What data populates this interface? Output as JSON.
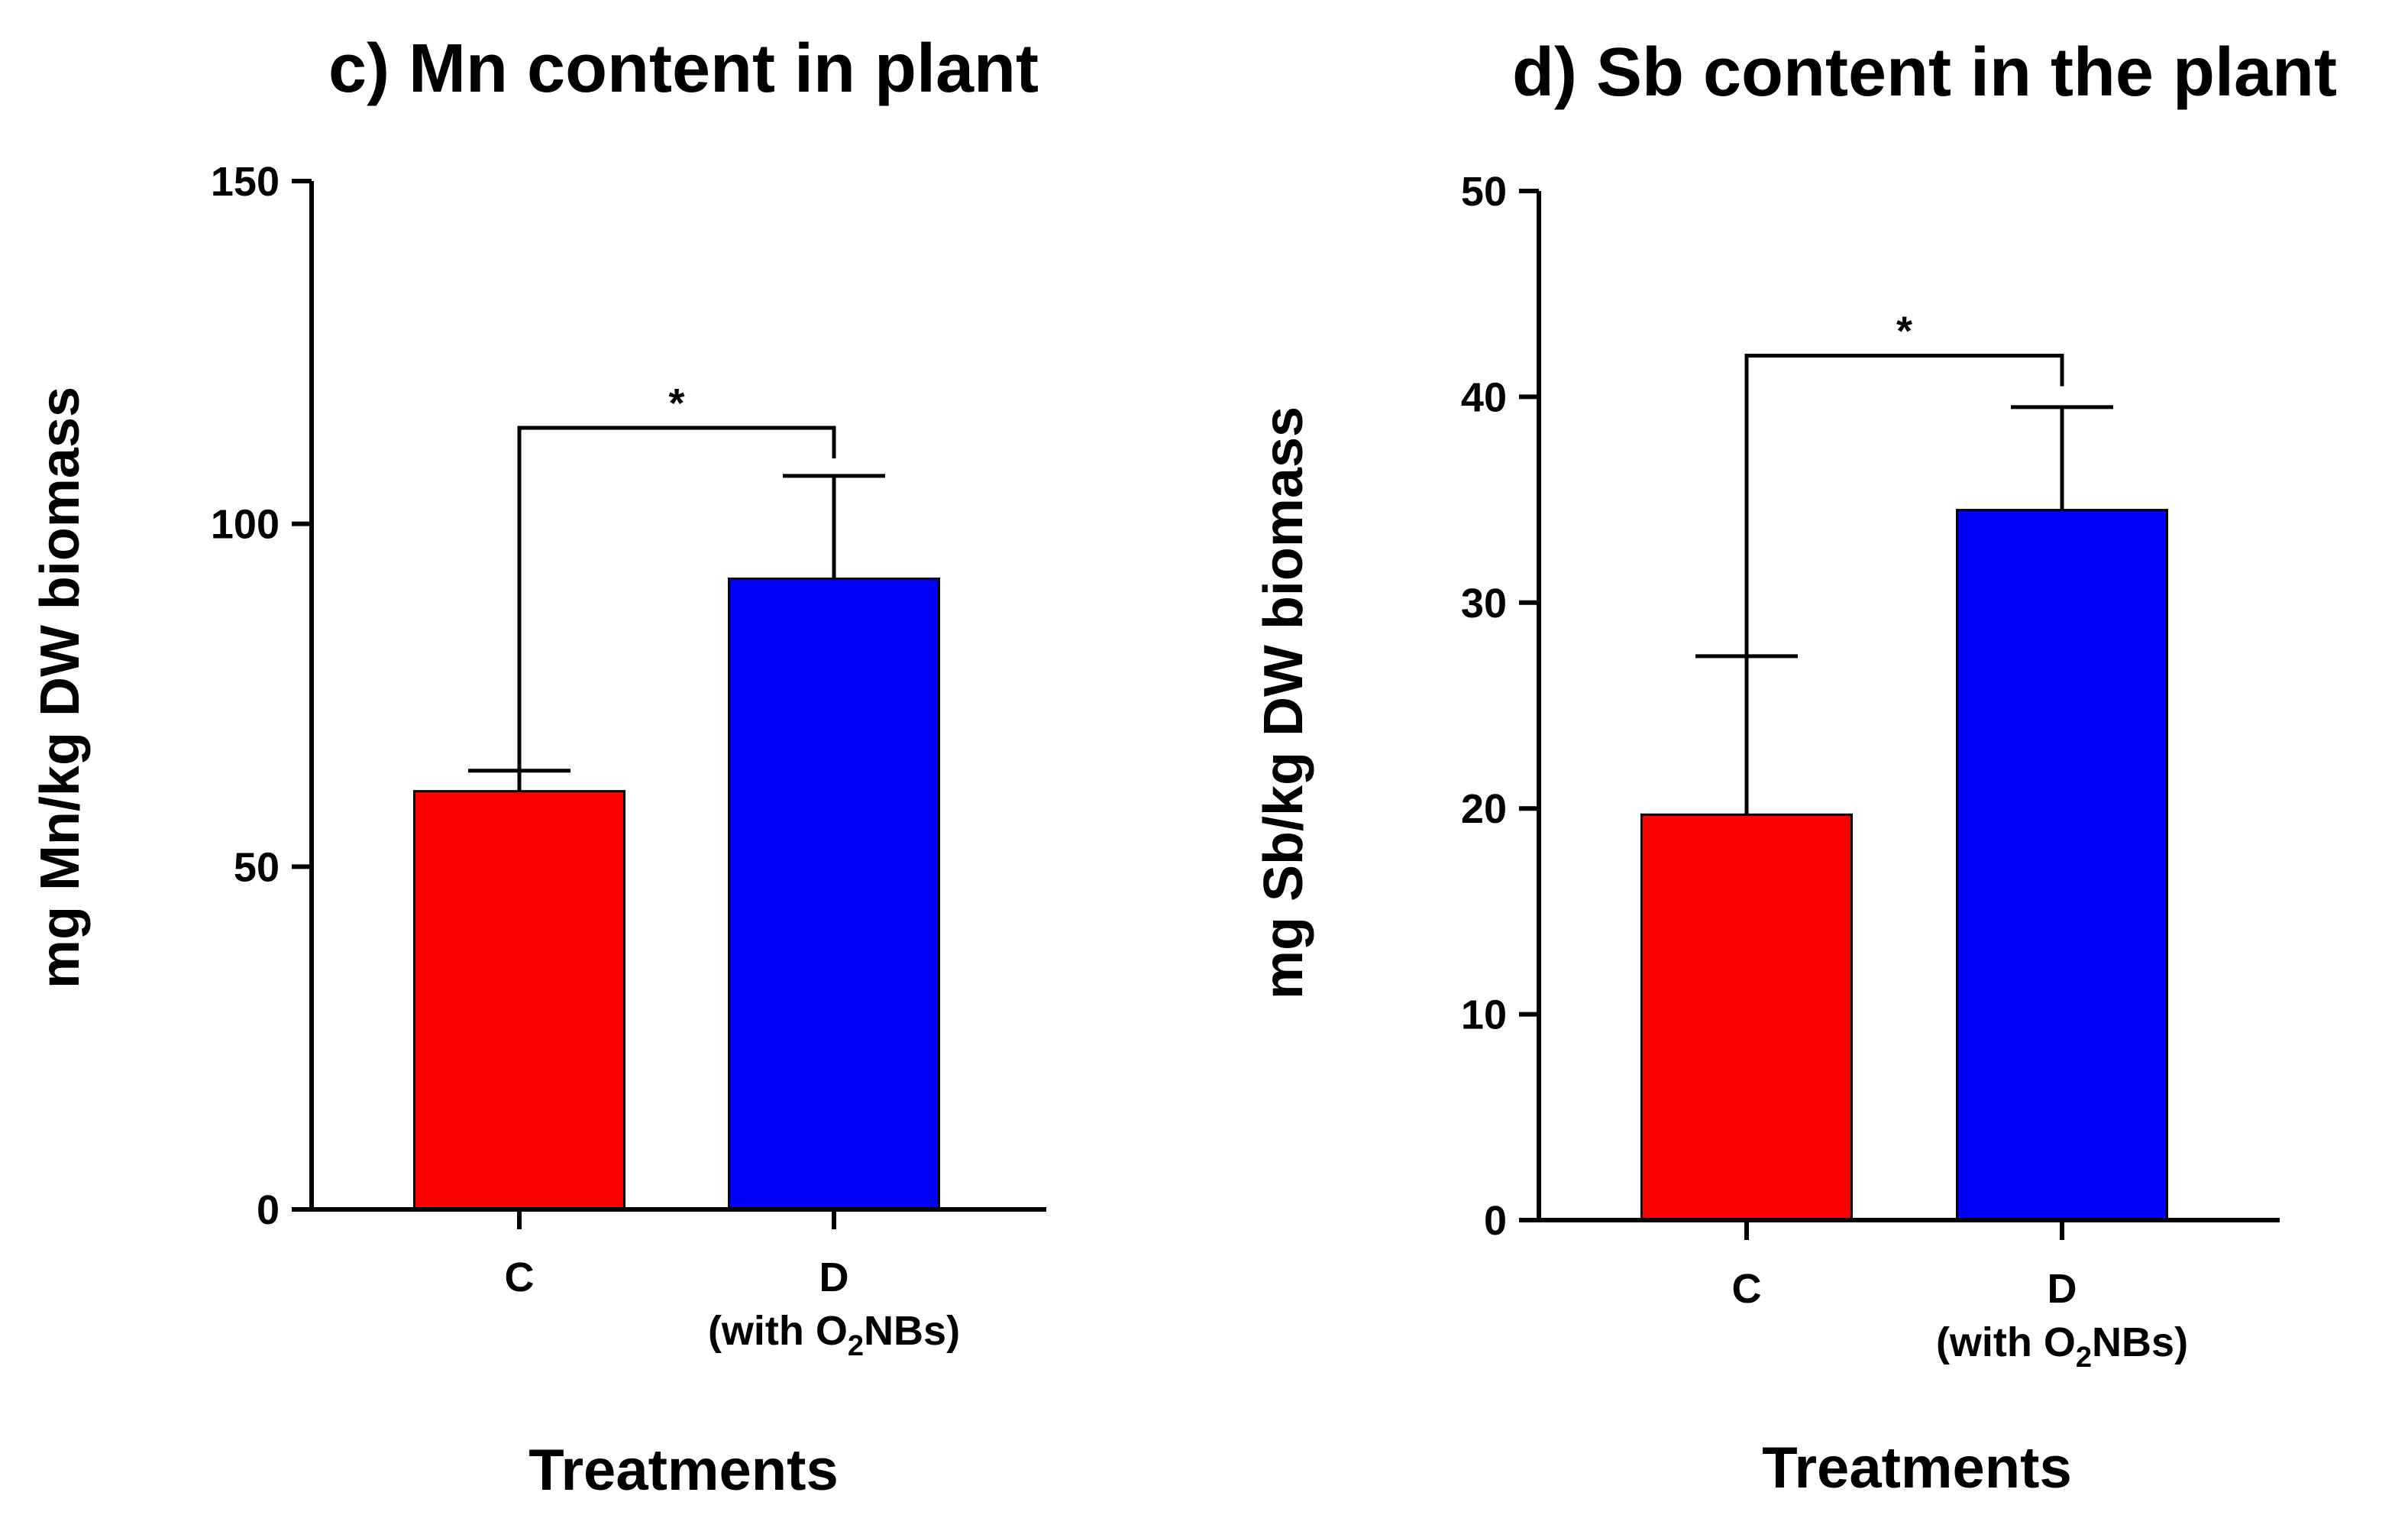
{
  "chart_data": [
    {
      "type": "bar",
      "title": "c) Mn content in plant",
      "xlabel": "Treatments",
      "ylabel": "mg Mn/kg DW biomass",
      "ylim": [
        0,
        150
      ],
      "yticks": [
        0,
        50,
        100,
        150
      ],
      "categories": [
        {
          "main": "C",
          "sub_prefix": "",
          "sub_main": "",
          "sub_script": "",
          "sub_suffix": ""
        },
        {
          "main": "D",
          "sub_prefix": "(with O",
          "sub_script": "2",
          "sub_suffix": "NBs)"
        }
      ],
      "values": [
        61,
        92
      ],
      "errors": [
        3,
        15
      ],
      "colors": [
        "#ff0000",
        "#0000ff"
      ],
      "significance": {
        "from": 0,
        "to": 1,
        "label": "*",
        "y": 114
      }
    },
    {
      "type": "bar",
      "title": "d) Sb content in the plant",
      "xlabel": "Treatments",
      "ylabel": "mg Sb/kg DW biomass",
      "ylim": [
        0,
        50
      ],
      "yticks": [
        0,
        10,
        20,
        30,
        40,
        50
      ],
      "categories": [
        {
          "main": "C",
          "sub_prefix": "",
          "sub_main": "",
          "sub_script": "",
          "sub_suffix": ""
        },
        {
          "main": "D",
          "sub_prefix": "(with O",
          "sub_script": "2",
          "sub_suffix": "NBs)"
        }
      ],
      "values": [
        19.7,
        34.5
      ],
      "errors": [
        7.7,
        5.0
      ],
      "colors": [
        "#ff0000",
        "#0000ff"
      ],
      "significance": {
        "from": 0,
        "to": 1,
        "label": "*",
        "y": 42
      }
    }
  ]
}
